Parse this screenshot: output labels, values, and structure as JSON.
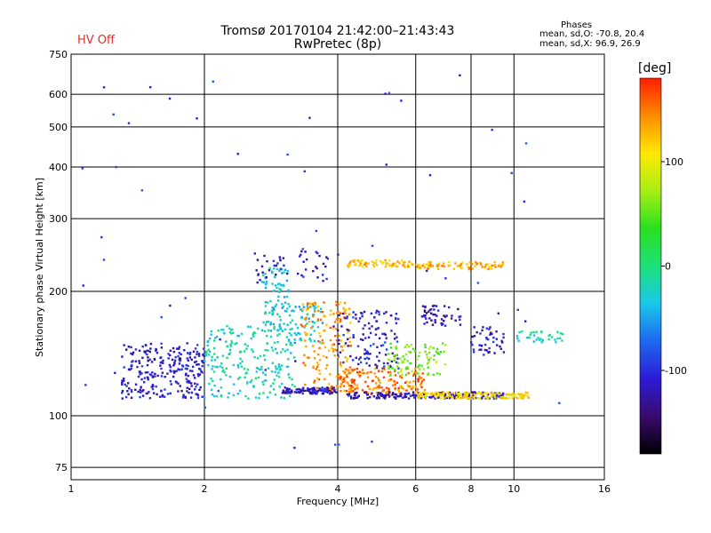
{
  "header": {
    "title_line1": "Tromsø 20170104 21:42:00–21:43:43",
    "title_line2": "RwPretec (8p)",
    "hv_status": "HV Off",
    "phases_title": "Phases",
    "phases_line1": "mean, sd,O: -70.8, 20.4",
    "phases_line2": "mean, sd,X:  96.9, 26.9"
  },
  "colors": {
    "hv_status": "#e0302a",
    "colormap": [
      "#000000",
      "#3a0a6e",
      "#2c1bd6",
      "#1e68f0",
      "#19c8ea",
      "#1ee07a",
      "#28e01e",
      "#a8ee14",
      "#ffe800",
      "#ff8c00",
      "#ff1e00"
    ]
  },
  "chart_data": {
    "type": "scatter",
    "title": "Tromsø 20170104 21:42:00–21:43:43",
    "subtitle": "RwPretec (8p)",
    "xlabel": "Frequency [MHz]",
    "ylabel": "Stationary phase Virtual Height [km]",
    "xscale": "log",
    "yscale": "log",
    "xlim": [
      1,
      16
    ],
    "ylim": [
      70,
      750
    ],
    "x_ticks": [
      1,
      2,
      4,
      6,
      8,
      10,
      16
    ],
    "x_tick_labels": [
      "1",
      "2",
      "4",
      "6",
      "8",
      "10",
      "16"
    ],
    "y_ticks": [
      75,
      100,
      200,
      300,
      400,
      500,
      600,
      750
    ],
    "y_tick_labels": [
      "75",
      "100",
      "200",
      "300",
      "400",
      "500",
      "600",
      "750"
    ],
    "grid": true,
    "colorbar": {
      "label": "[deg]",
      "range": [
        -180,
        180
      ],
      "ticks": [
        100,
        0,
        -100
      ],
      "tick_labels": [
        "100",
        "0",
        "-100"
      ]
    },
    "point_clusters": [
      {
        "x_range": [
          1.3,
          2.0
        ],
        "y_range": [
          110,
          150
        ],
        "phase": -110,
        "count": 260
      },
      {
        "x_range": [
          2.0,
          3.2
        ],
        "y_range": [
          110,
          165
        ],
        "phase": -20,
        "count": 220
      },
      {
        "x_range": [
          2.7,
          3.1
        ],
        "y_range": [
          160,
          230
        ],
        "phase": -30,
        "count": 90
      },
      {
        "x_range": [
          3.0,
          4.0
        ],
        "y_range": [
          113,
          117
        ],
        "phase": -115,
        "count": 110
      },
      {
        "x_range": [
          3.1,
          3.7
        ],
        "y_range": [
          150,
          185
        ],
        "phase": -35,
        "count": 60
      },
      {
        "x_range": [
          3.3,
          4.3
        ],
        "y_range": [
          115,
          190
        ],
        "phase": 140,
        "count": 160
      },
      {
        "x_range": [
          4.0,
          5.5
        ],
        "y_range": [
          130,
          180
        ],
        "phase": -105,
        "count": 120
      },
      {
        "x_range": [
          4.0,
          6.3
        ],
        "y_range": [
          112,
          130
        ],
        "phase": 150,
        "count": 160
      },
      {
        "x_range": [
          4.2,
          9.5
        ],
        "y_range": [
          110,
          114
        ],
        "phase": -120,
        "count": 180
      },
      {
        "x_range": [
          5.2,
          7.0
        ],
        "y_range": [
          125,
          150
        ],
        "phase": 60,
        "count": 90
      },
      {
        "x_range": [
          6.0,
          10.8
        ],
        "y_range": [
          110,
          114
        ],
        "phase": 110,
        "count": 150
      },
      {
        "x_range": [
          4.2,
          6.0
        ],
        "y_range": [
          229,
          238
        ],
        "phase": 120,
        "count": 70
      },
      {
        "x_range": [
          6.0,
          9.5
        ],
        "y_range": [
          226,
          236
        ],
        "phase": 130,
        "count": 80
      },
      {
        "x_range": [
          2.6,
          3.8
        ],
        "y_range": [
          210,
          250
        ],
        "phase": -115,
        "count": 50
      },
      {
        "x_range": [
          6.2,
          7.6
        ],
        "y_range": [
          165,
          185
        ],
        "phase": -120,
        "count": 50
      },
      {
        "x_range": [
          8.0,
          9.5
        ],
        "y_range": [
          140,
          165
        ],
        "phase": -110,
        "count": 45
      },
      {
        "x_range": [
          10.0,
          13.0
        ],
        "y_range": [
          150,
          160
        ],
        "phase": -20,
        "count": 35
      },
      {
        "x_range": [
          1.0,
          13.0
        ],
        "y_range": [
          80,
          680
        ],
        "phase": -100,
        "count": 55
      }
    ]
  }
}
